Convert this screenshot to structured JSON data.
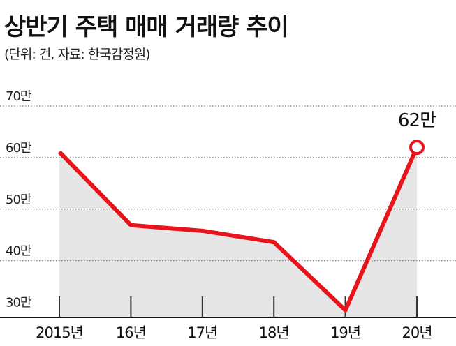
{
  "chart_data": {
    "type": "line",
    "title": "상반기 주택 매매 거래량 추이",
    "subtitle": "(단위: 건, 자료: 한국감정원)",
    "categories": [
      "2015년",
      "16년",
      "17년",
      "18년",
      "19년",
      "20년"
    ],
    "values": [
      61.1,
      46.9,
      45.8,
      43.6,
      30.4,
      62
    ],
    "value_labels": [
      null,
      null,
      null,
      null,
      null,
      "62만"
    ],
    "color": "#e8141c",
    "area_color": "#e6e6e6",
    "ylim": [
      29,
      70
    ],
    "yticks": [
      {
        "value": 30,
        "label": "30만"
      },
      {
        "value": 40,
        "label": "40만"
      },
      {
        "value": 50,
        "label": "50만"
      },
      {
        "value": 60,
        "label": "60만"
      },
      {
        "value": 70,
        "label": "70만"
      }
    ],
    "grid": true
  }
}
